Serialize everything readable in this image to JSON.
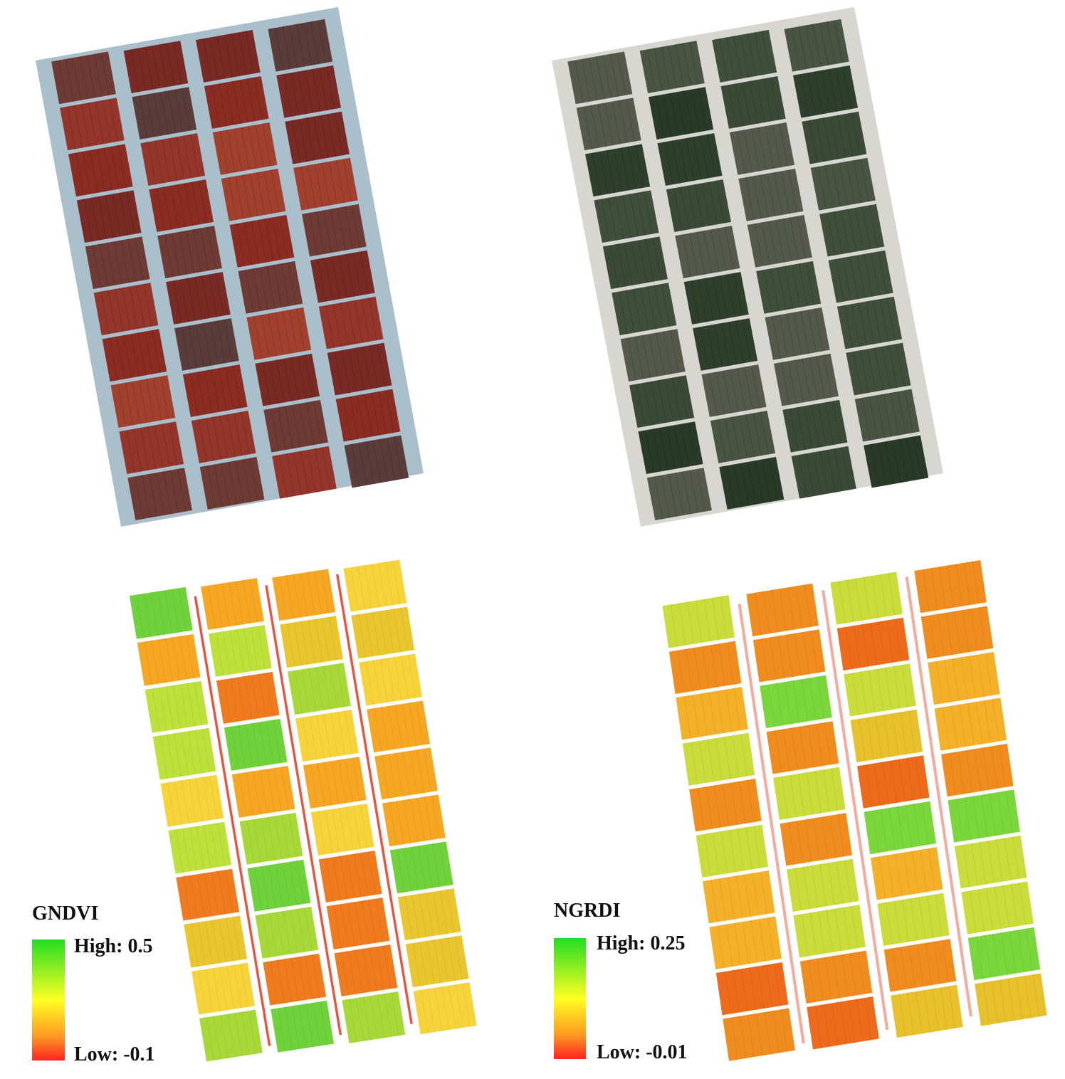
{
  "gndvi_legend": {
    "title": "GNDVI",
    "high": "High: 0.5",
    "low": "Low: -0.1"
  },
  "ngrdi_legend": {
    "title": "NGRDI",
    "high": "High: 0.25",
    "low": "Low: -0.01"
  }
}
